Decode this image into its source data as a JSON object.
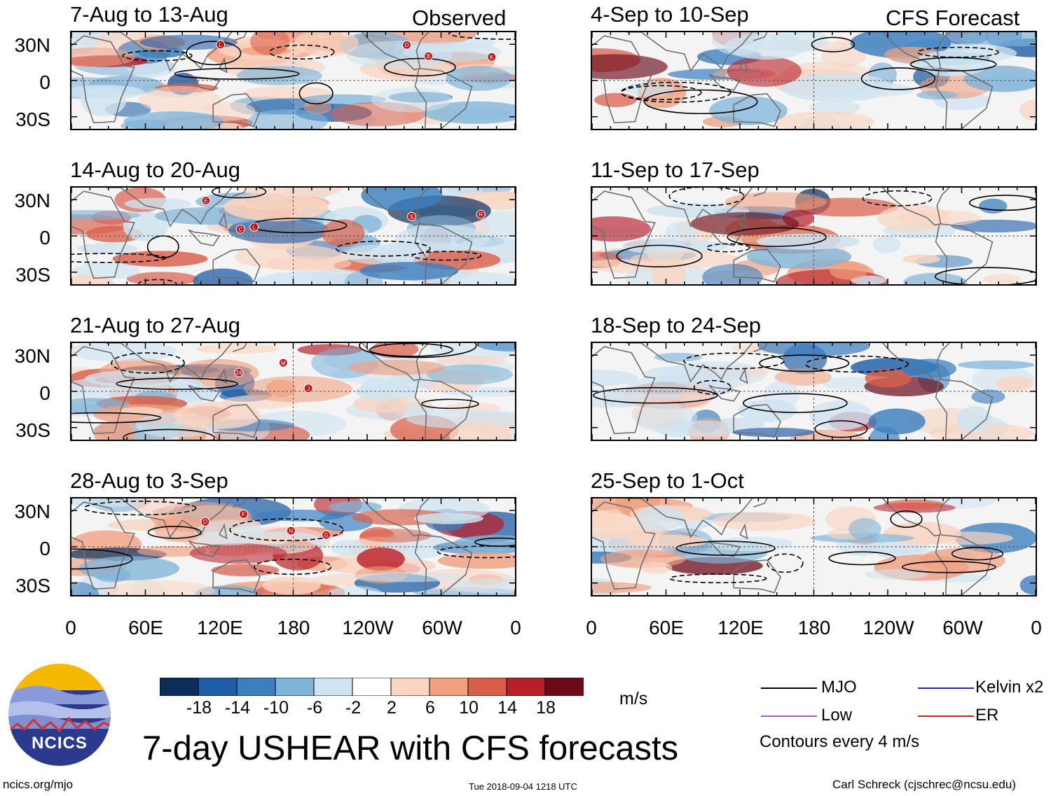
{
  "chart_data": {
    "type": "heatmap",
    "title": "7-day USHEAR with CFS forecasts",
    "column_labels": [
      "Observed",
      "CFS Forecast"
    ],
    "x_ticks": [
      "0",
      "60E",
      "120E",
      "180",
      "120W",
      "60W",
      "0"
    ],
    "y_ticks": [
      "30N",
      "0",
      "30S"
    ],
    "xlim": [
      0,
      360
    ],
    "ylim": [
      -40,
      40
    ],
    "observed_periods": [
      "7-Aug to 13-Aug",
      "14-Aug to 20-Aug",
      "21-Aug to 27-Aug",
      "28-Aug to 3-Sep"
    ],
    "forecast_periods": [
      "4-Sep to 10-Sep",
      "11-Sep to 17-Sep",
      "18-Sep to 24-Sep",
      "25-Sep to 1-Oct"
    ],
    "colorbar": {
      "unit": "m/s",
      "tick_labels": [
        "-18",
        "-14",
        "-10",
        "-6",
        "-2",
        "2",
        "6",
        "10",
        "14",
        "18"
      ],
      "colors": [
        "#0b2d5a",
        "#1f5ea6",
        "#3b7fbf",
        "#7fb3d8",
        "#cfe3f0",
        "#ffffff",
        "#f9d5c2",
        "#f0a07f",
        "#d95f4a",
        "#b81f2a",
        "#6b0b1a"
      ]
    },
    "contour_note": "Contours every 4 m/s",
    "legend": [
      {
        "label": "MJO",
        "color": "#000000"
      },
      {
        "label": "Kelvin x2",
        "color": "#1a28c8"
      },
      {
        "label": "Low",
        "color": "#9b5fd6"
      },
      {
        "label": "ER",
        "color": "#d42020"
      }
    ],
    "storm_markers": [
      {
        "panel": 0,
        "labels": [
          "B",
          "L",
          "K",
          "D"
        ]
      },
      {
        "panel": 1,
        "labels": [
          "R",
          "S",
          "C",
          "L",
          "E"
        ]
      },
      {
        "panel": 2,
        "labels": [
          "24",
          "J",
          "M"
        ]
      },
      {
        "panel": 3,
        "labels": [
          "N",
          "O",
          "G",
          "F"
        ]
      }
    ]
  },
  "logo": {
    "text": "NCICS"
  },
  "footer": {
    "left": "ncics.org/mjo",
    "center": "Tue 2018-09-04 1218 UTC",
    "right": "Carl Schreck (cjschrec@ncsu.edu)"
  }
}
